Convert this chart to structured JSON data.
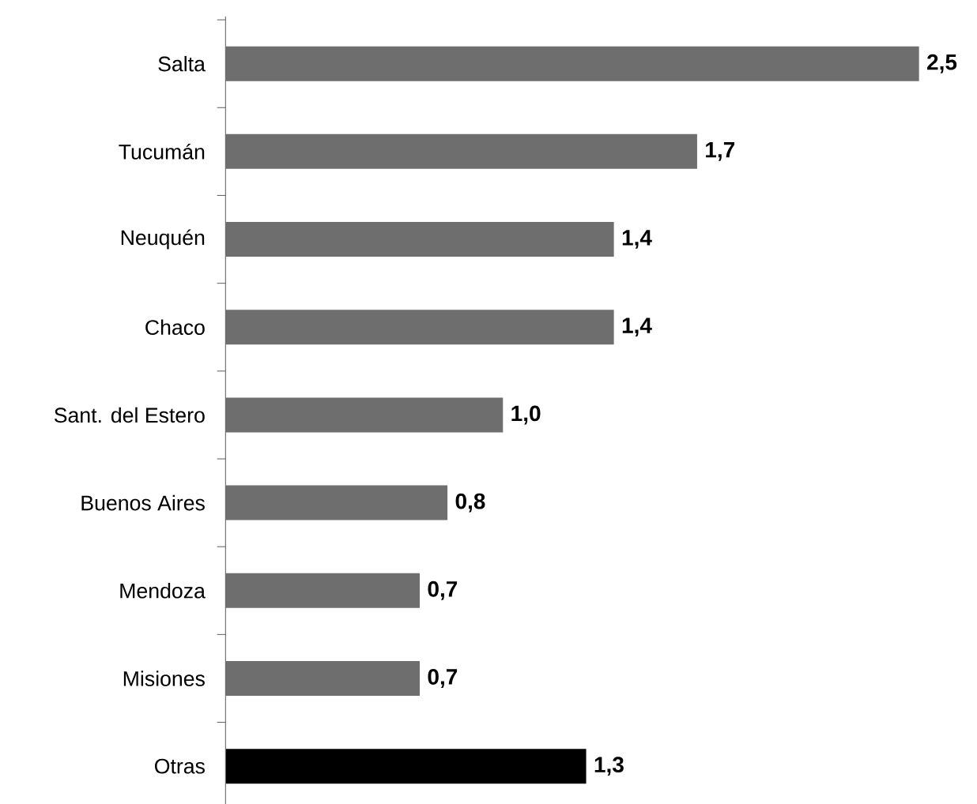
{
  "chart_data": {
    "type": "bar",
    "orientation": "horizontal",
    "categories": [
      "Salta",
      "Tucumán",
      "Neuquén",
      "Chaco",
      "Sant. del Estero",
      "Buenos Aires",
      "Mendoza",
      "Misiones",
      "Otras"
    ],
    "values": [
      2.5,
      1.7,
      1.4,
      1.4,
      1.0,
      0.8,
      0.7,
      0.7,
      1.3
    ],
    "value_labels": [
      "2,5",
      "1,7",
      "1,4",
      "1,4",
      "1,0",
      "0,8",
      "0,7",
      "0,7",
      "1,3"
    ],
    "colors": [
      "#6e6e6e",
      "#6e6e6e",
      "#6e6e6e",
      "#6e6e6e",
      "#6e6e6e",
      "#6e6e6e",
      "#6e6e6e",
      "#6e6e6e",
      "#000000"
    ]
  }
}
